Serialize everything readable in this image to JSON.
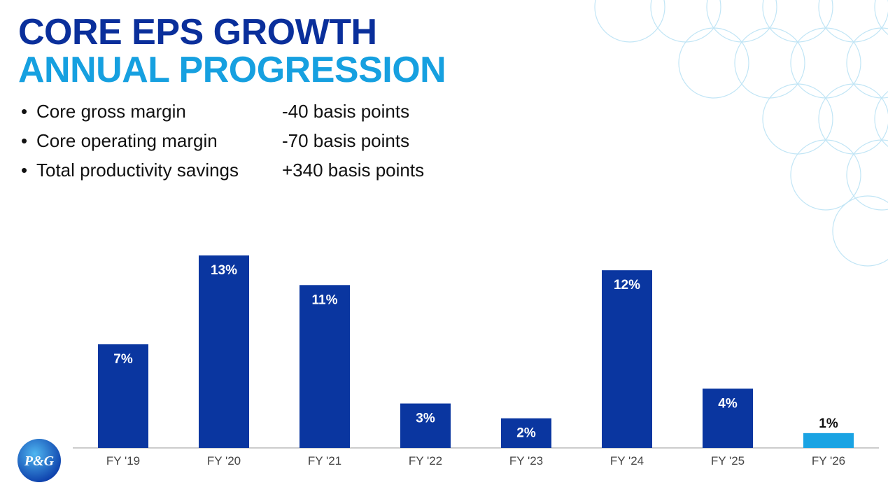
{
  "header": {
    "title": "CORE EPS GROWTH",
    "subtitle": "ANNUAL PROGRESSION"
  },
  "bullets": [
    {
      "label": "Core gross margin",
      "value": "-40 basis points"
    },
    {
      "label": "Core operating margin",
      "value": "-70 basis points"
    },
    {
      "label": "Total productivity savings",
      "value": "+340 basis points"
    }
  ],
  "logo": "P&G",
  "chart_data": {
    "type": "bar",
    "categories": [
      "FY '19",
      "FY '20",
      "FY '21",
      "FY '22",
      "FY '23",
      "FY '24",
      "FY '25",
      "FY '26"
    ],
    "values": [
      7,
      13,
      11,
      3,
      2,
      12,
      4,
      1
    ],
    "value_labels": [
      "7%",
      "13%",
      "11%",
      "3%",
      "2%",
      "12%",
      "4%",
      "1%"
    ],
    "colors": [
      "#0a36a0",
      "#0a36a0",
      "#0a36a0",
      "#0a36a0",
      "#0a36a0",
      "#0a36a0",
      "#0a36a0",
      "#1aa3e3"
    ]
  }
}
